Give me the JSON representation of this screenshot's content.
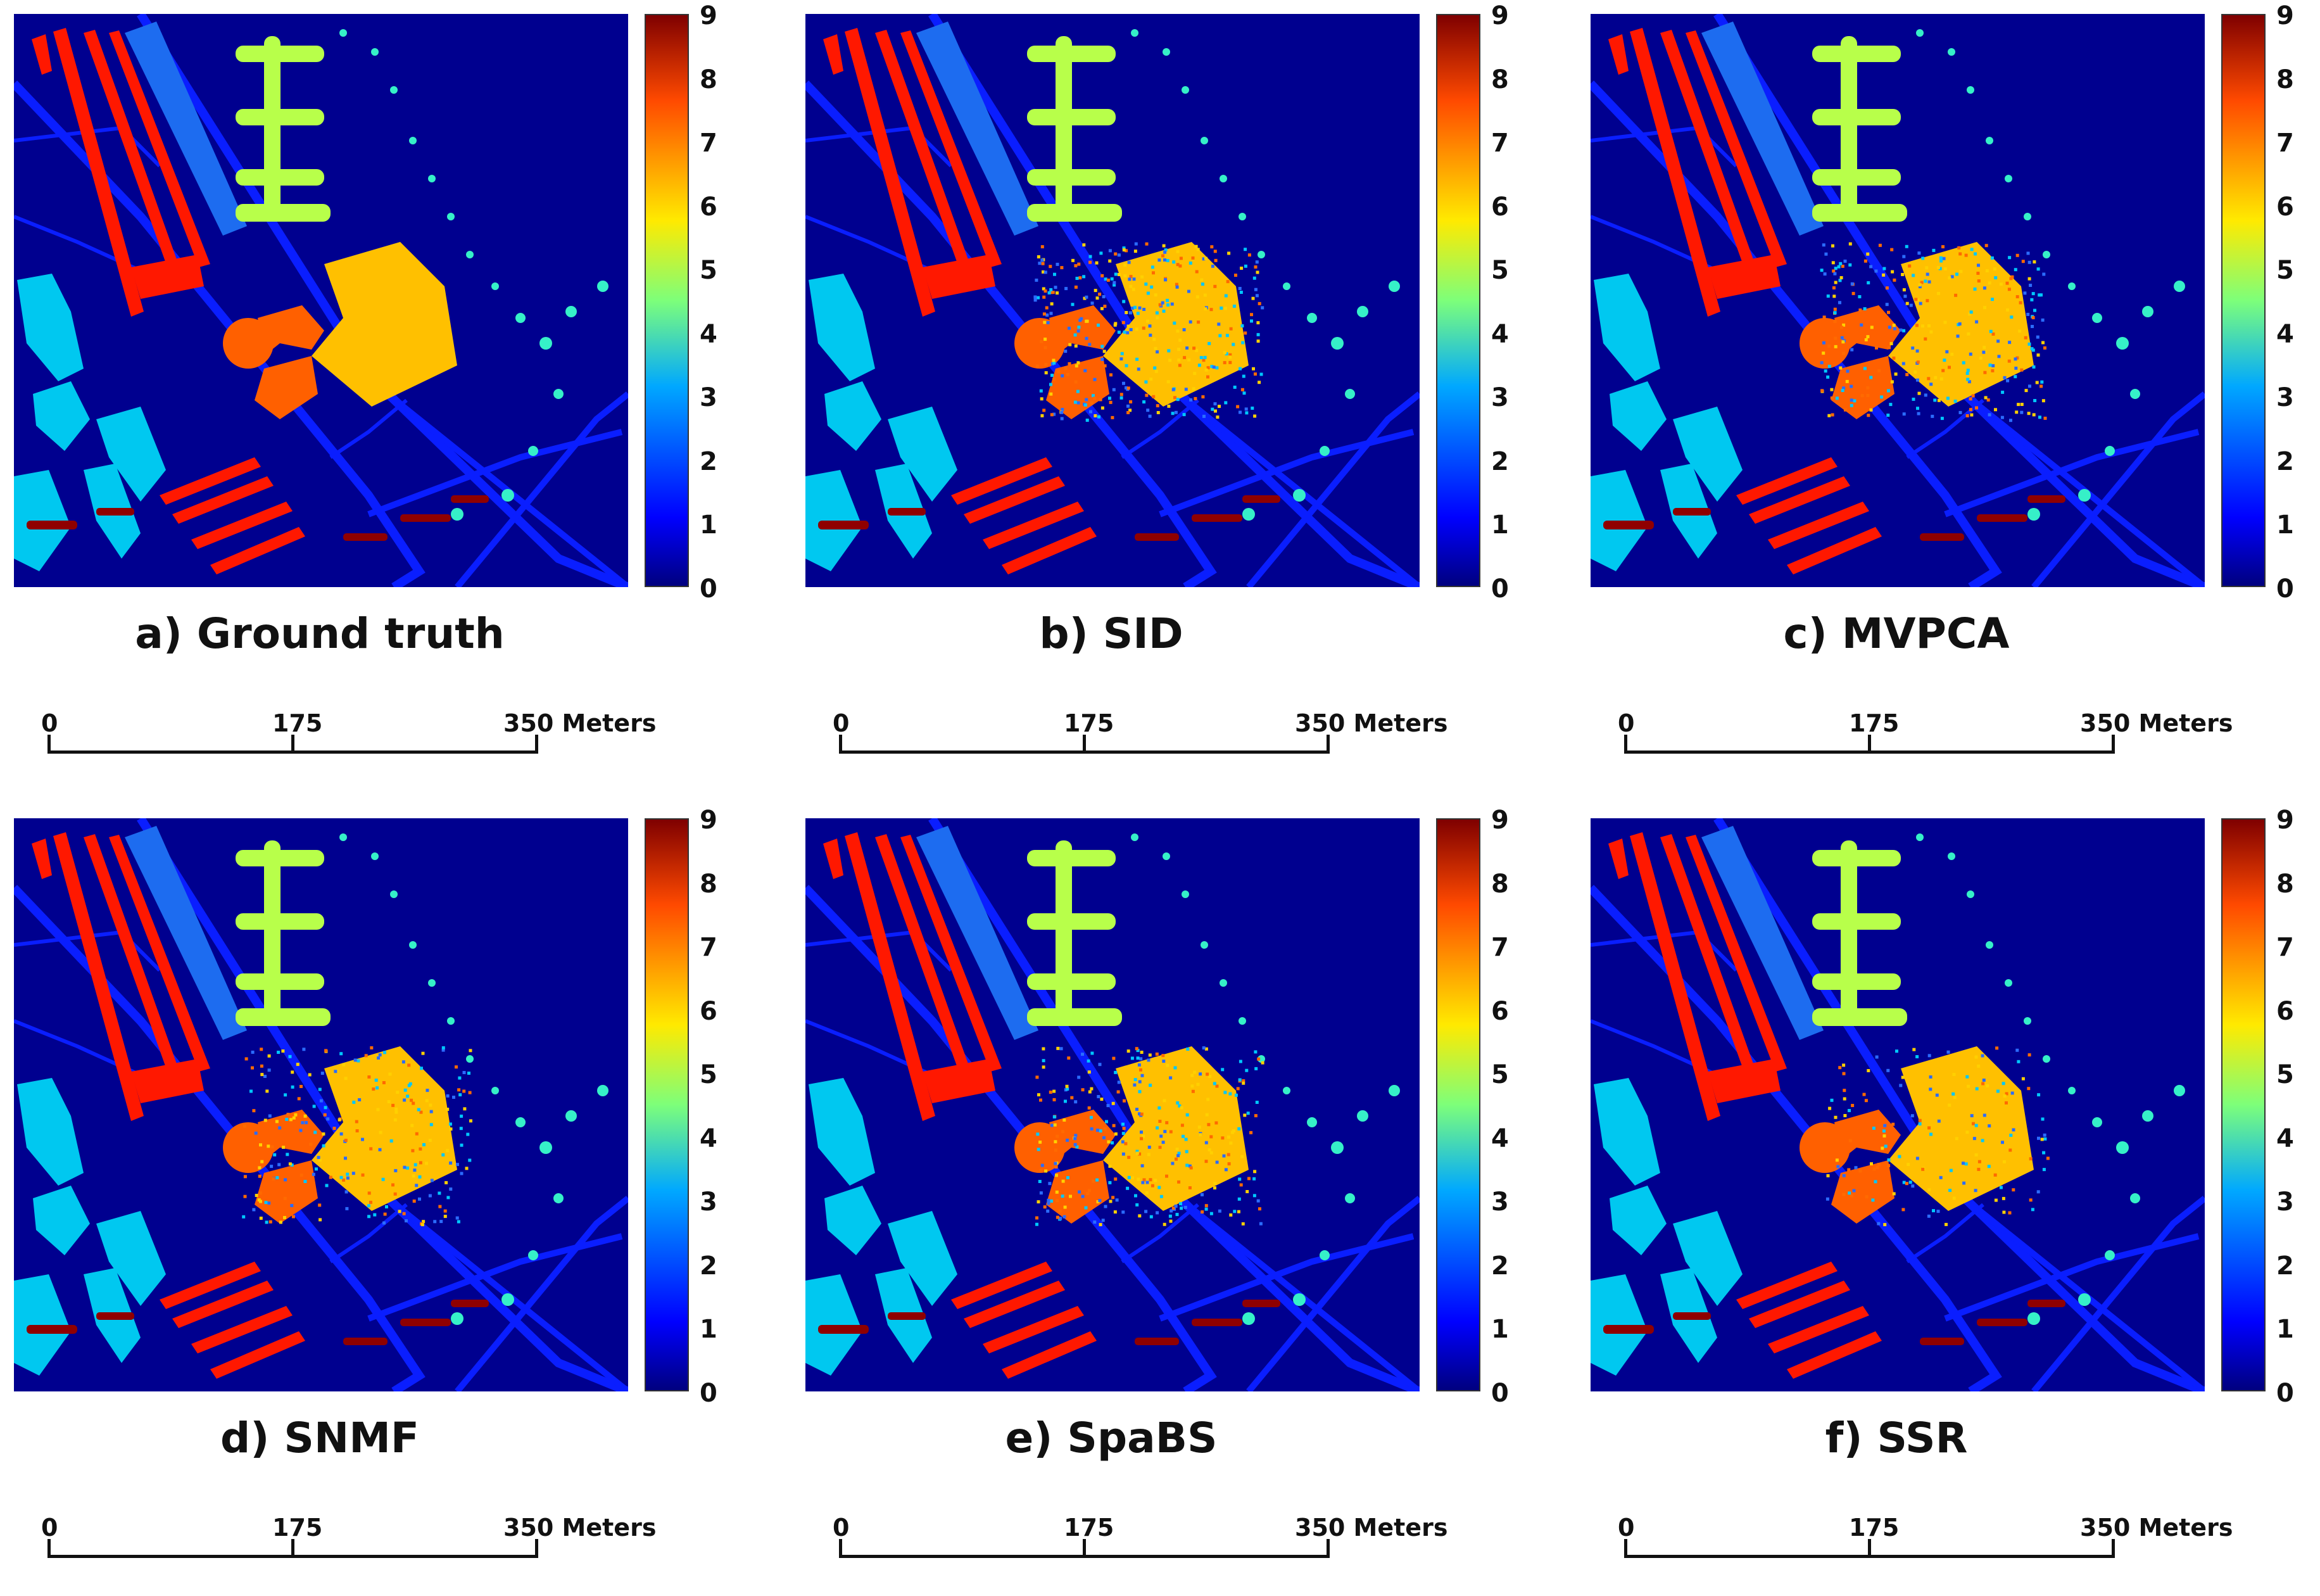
{
  "figure": {
    "panels": [
      {
        "caption": "a) Ground truth",
        "noise": 0.0,
        "noise_palette": []
      },
      {
        "caption": "b) SID",
        "noise": 0.06,
        "noise_palette": [
          "#ff6a00",
          "#2b6cff",
          "#ffd000",
          "#00c8ff"
        ]
      },
      {
        "caption": "c) MVPCA",
        "noise": 0.05,
        "noise_palette": [
          "#ff6a00",
          "#2b6cff",
          "#ffd000",
          "#00c8ff"
        ]
      },
      {
        "caption": "d) SNMF",
        "noise": 0.04,
        "noise_palette": [
          "#ff6a00",
          "#2b6cff",
          "#ffd000",
          "#00c8ff"
        ]
      },
      {
        "caption": "e) SpaBS",
        "noise": 0.05,
        "noise_palette": [
          "#ff6a00",
          "#2b6cff",
          "#ffd000",
          "#00c8ff"
        ]
      },
      {
        "caption": "f) SSR",
        "noise": 0.025,
        "noise_palette": [
          "#ff6a00",
          "#2b6cff",
          "#ffd000",
          "#00c8ff"
        ]
      }
    ],
    "colorbar": {
      "ticks": [
        "9",
        "8",
        "7",
        "6",
        "5",
        "4",
        "3",
        "2",
        "1",
        "0"
      ],
      "colors": {
        "0": "#00008f",
        "1": "#0000ff",
        "2": "#0060ff",
        "3": "#00d0ff",
        "4": "#36ffc8",
        "5": "#b0ff4a",
        "6": "#ffc000",
        "7": "#ff6000",
        "8": "#ff1800",
        "9": "#8f0000"
      }
    },
    "scalebar": {
      "label_0": "0",
      "label_mid": "175",
      "label_end": "350 Meters"
    },
    "map_colors": {
      "background": "#00008f",
      "roads": "#0a1eff",
      "meadow_bar": "#1d6cf0",
      "gravel_patches": "#00c8f0",
      "trees": "#36f0c8",
      "painted_metal": "#b8ff4a",
      "bare_soil": "#ffc000",
      "bitumen": "#ff6000",
      "bricks": "#ff1800",
      "shadows": "#8f0000"
    }
  }
}
